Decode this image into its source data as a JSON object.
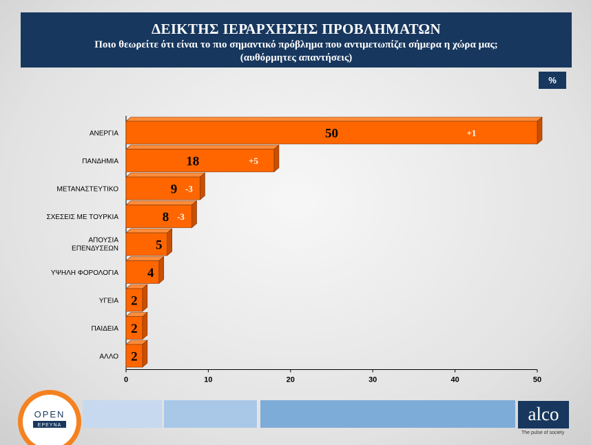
{
  "header": {
    "title": "ΔΕΙΚΤΗΣ ΙΕΡΑΡΧΗΣΗΣ ΠΡΟΒΛΗΜΑΤΩΝ",
    "question": "Ποιο θεωρείτε ότι είναι το πιο σημαντικό πρόβλημα που αντιμετωπίζει σήμερα η χώρα μας;",
    "note": "(αυθόρμητες απαντήσεις)",
    "unit_badge": "%"
  },
  "colors": {
    "bar": "#ff6600",
    "bar_top": "#ff8c3a",
    "bar_side": "#c94f00",
    "header_bg": "#17375e"
  },
  "chart_data": {
    "type": "bar",
    "orientation": "horizontal",
    "categories": [
      "ΑΝΕΡΓΙΑ",
      "ΠΑΝΔΗΜΙΑ",
      "ΜΕΤΑΝΑΣΤΕΥΤΙΚΟ",
      "ΣΧΕΣΕΙΣ ΜΕ ΤΟΥΡΚΙΑ",
      "ΑΠΟΥΣΙΑ ΕΠΕΝΔΥΣΕΩΝ",
      "ΥΨΗΛΗ ΦΟΡΟΛΟΓΙΑ",
      "ΥΓΕΙΑ",
      "ΠΑΙΔΕΙΑ",
      "ΑΛΛΟ"
    ],
    "values": [
      50,
      18,
      9,
      8,
      5,
      4,
      2,
      2,
      2
    ],
    "changes": [
      "+1",
      "+5",
      "-3",
      "-3",
      "",
      "",
      "",
      "",
      ""
    ],
    "xlim": [
      0,
      50
    ],
    "xticks": [
      0,
      10,
      20,
      30,
      40,
      50
    ]
  },
  "footer": {
    "logo_left_line1": "OPEN",
    "logo_left_line2": "ΕΡΕΥΝΑ",
    "logo_right": "alco",
    "logo_right_tagline": "The pulse of society"
  }
}
